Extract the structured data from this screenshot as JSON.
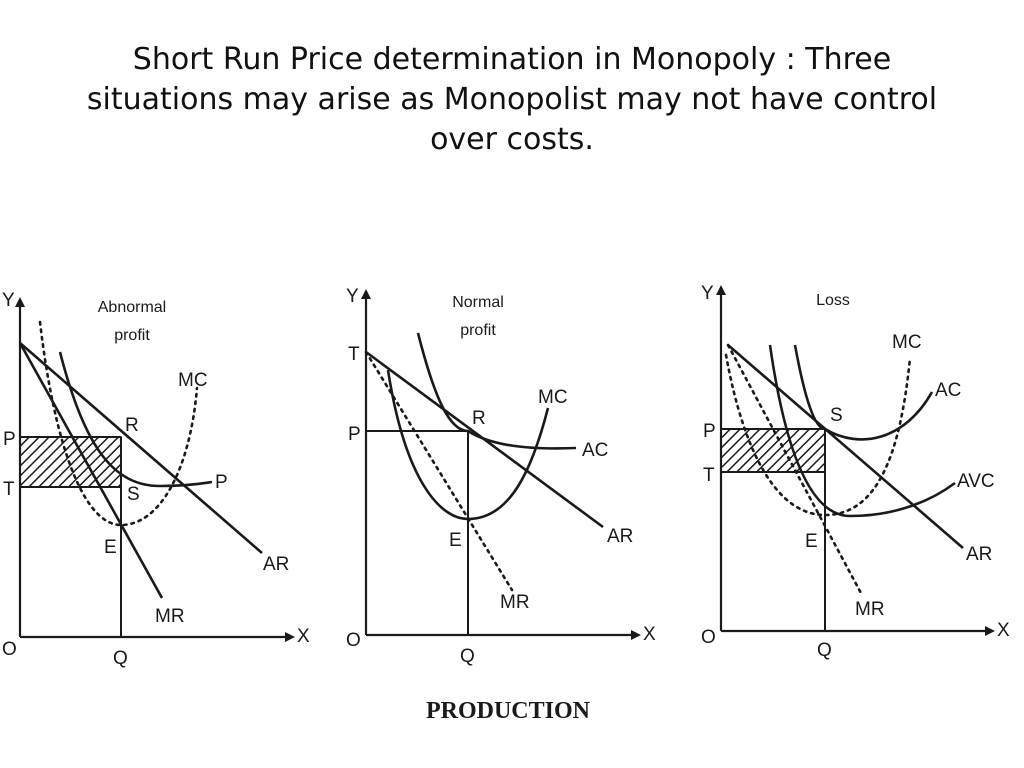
{
  "title": {
    "line1": "Short Run Price determination in Monopoly : Three",
    "line2": "situations may arise as Monopolist may not have control",
    "line3": "over costs."
  },
  "footer": "PRODUCTION",
  "panels": [
    {
      "caption": [
        "Abnormal",
        "profit"
      ],
      "labels": {
        "y": "Y",
        "x": "X",
        "o": "O",
        "q": "Q",
        "p": "P",
        "t": "T",
        "r": "R",
        "s": "S",
        "e": "E",
        "mc": "MC",
        "ac": "P",
        "ar": "AR",
        "mr": "MR"
      }
    },
    {
      "caption": [
        "Normal",
        "profit"
      ],
      "labels": {
        "y": "Y",
        "x": "X",
        "o": "O",
        "q": "Q",
        "p": "P",
        "t": "T",
        "r": "R",
        "e": "E",
        "mc": "MC",
        "ac": "AC",
        "ar": "AR",
        "mr": "MR"
      }
    },
    {
      "caption": [
        "Loss"
      ],
      "labels": {
        "y": "Y",
        "x": "X",
        "o": "O",
        "q": "Q",
        "p": "P",
        "t": "T",
        "s": "S",
        "e": "E",
        "mc": "MC",
        "ac": "AC",
        "avc": "AVC",
        "ar": "AR",
        "mr": "MR"
      }
    }
  ]
}
